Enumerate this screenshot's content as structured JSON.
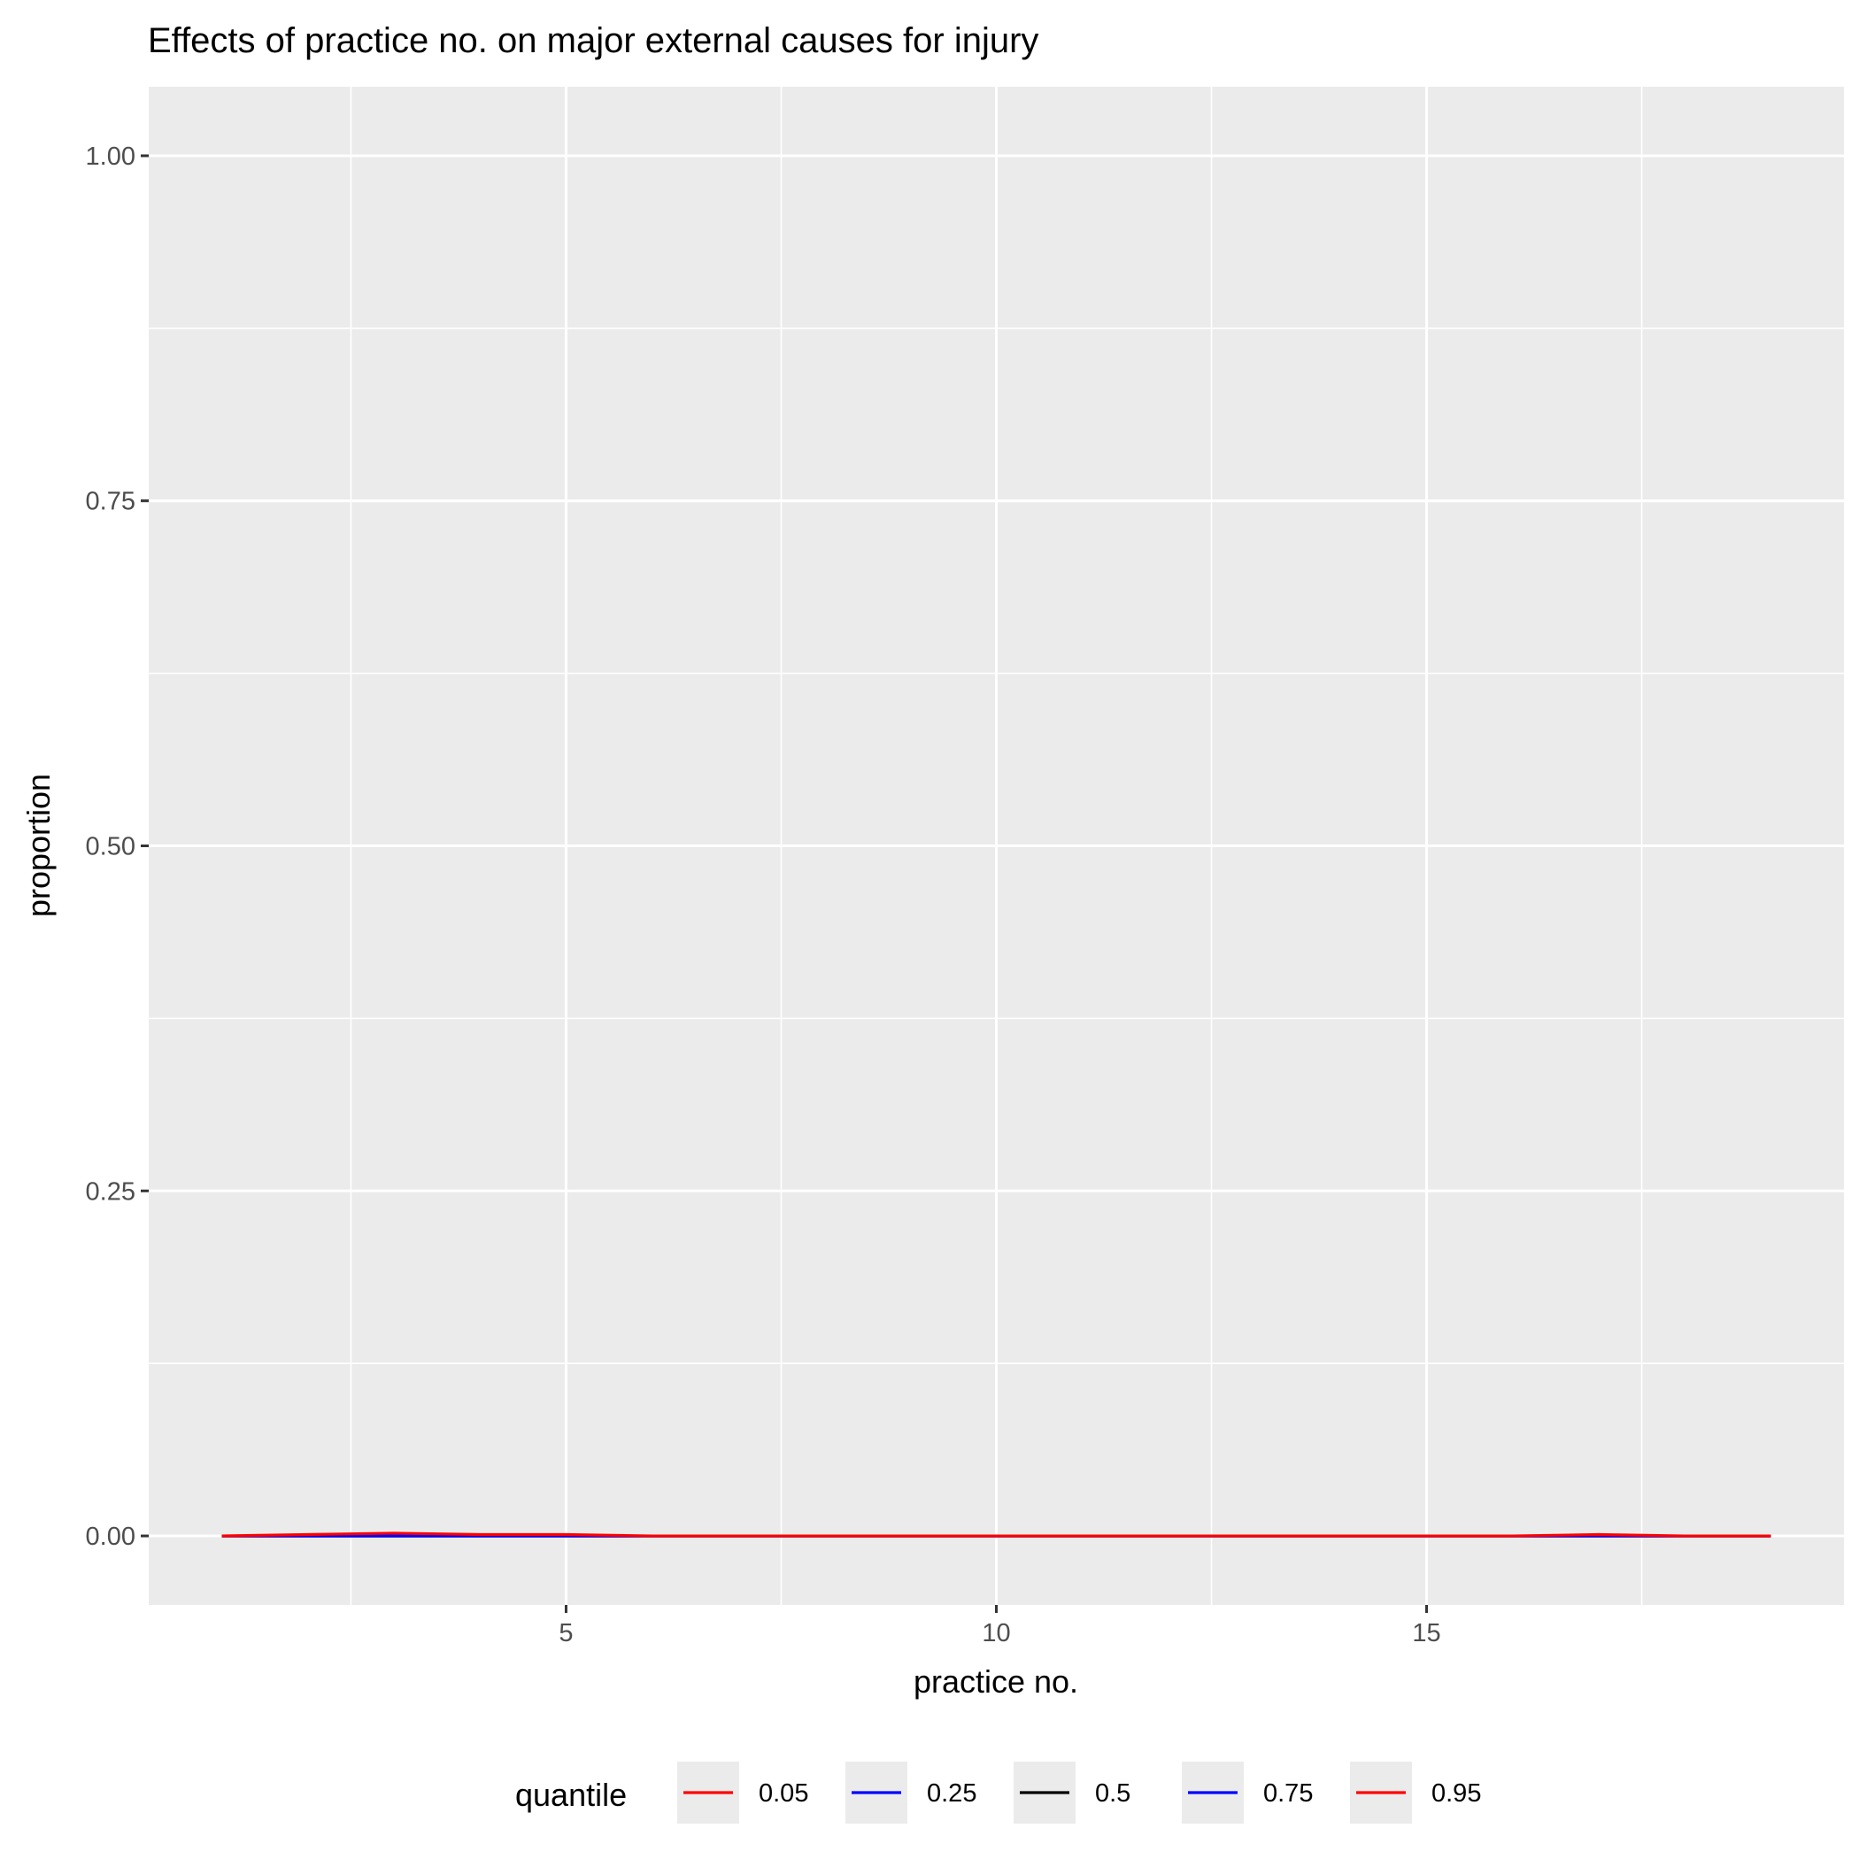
{
  "chart_data": {
    "type": "line",
    "title": "Effects of practice no. on major external causes for injury",
    "xlabel": "practice no.",
    "ylabel": "proportion",
    "xlim": [
      0.15,
      19.85
    ],
    "ylim": [
      -0.05,
      1.05
    ],
    "x_ticks": [
      5,
      10,
      15
    ],
    "x_tick_labels": [
      "5",
      "10",
      "15"
    ],
    "x_minor": [
      2.5,
      7.5,
      12.5,
      17.5
    ],
    "y_ticks": [
      0,
      0.25,
      0.5,
      0.75,
      1
    ],
    "y_tick_labels": [
      "0.00",
      "0.25",
      "0.50",
      "0.75",
      "1.00"
    ],
    "y_minor": [
      0.125,
      0.375,
      0.625,
      0.875
    ],
    "grid": true,
    "legend": {
      "title": "quantile",
      "position": "bottom"
    },
    "x": [
      1,
      2,
      3,
      4,
      5,
      6,
      7,
      8,
      9,
      10,
      11,
      12,
      13,
      14,
      15,
      16,
      17,
      18,
      19
    ],
    "series": [
      {
        "name": "0.05",
        "color": "#ff0000",
        "values": [
          0,
          0,
          0,
          0,
          0,
          0,
          0,
          0,
          0,
          0,
          0,
          0,
          0,
          0,
          0,
          0,
          0,
          0,
          0
        ]
      },
      {
        "name": "0.25",
        "color": "#0000ff",
        "values": [
          0,
          0,
          0,
          0,
          0,
          0,
          0,
          0,
          0,
          0,
          0,
          0,
          0,
          0,
          0,
          0,
          0,
          0,
          0
        ]
      },
      {
        "name": "0.5",
        "color": "#000000",
        "values": [
          0,
          0,
          0,
          0,
          0,
          0,
          0,
          0,
          0,
          0,
          0,
          0,
          0,
          0,
          0,
          0,
          0,
          0,
          0
        ]
      },
      {
        "name": "0.75",
        "color": "#0000ff",
        "values": [
          0,
          0,
          0,
          0,
          0,
          0,
          0,
          0,
          0,
          0,
          0,
          0,
          0,
          0,
          0,
          0,
          0,
          0,
          0
        ]
      },
      {
        "name": "0.95",
        "color": "#ff0000",
        "values": [
          0,
          0.001,
          0.002,
          0.001,
          0.001,
          0,
          0,
          0,
          0,
          0,
          0,
          0,
          0,
          0,
          0,
          0,
          0.001,
          0,
          0
        ]
      }
    ]
  }
}
